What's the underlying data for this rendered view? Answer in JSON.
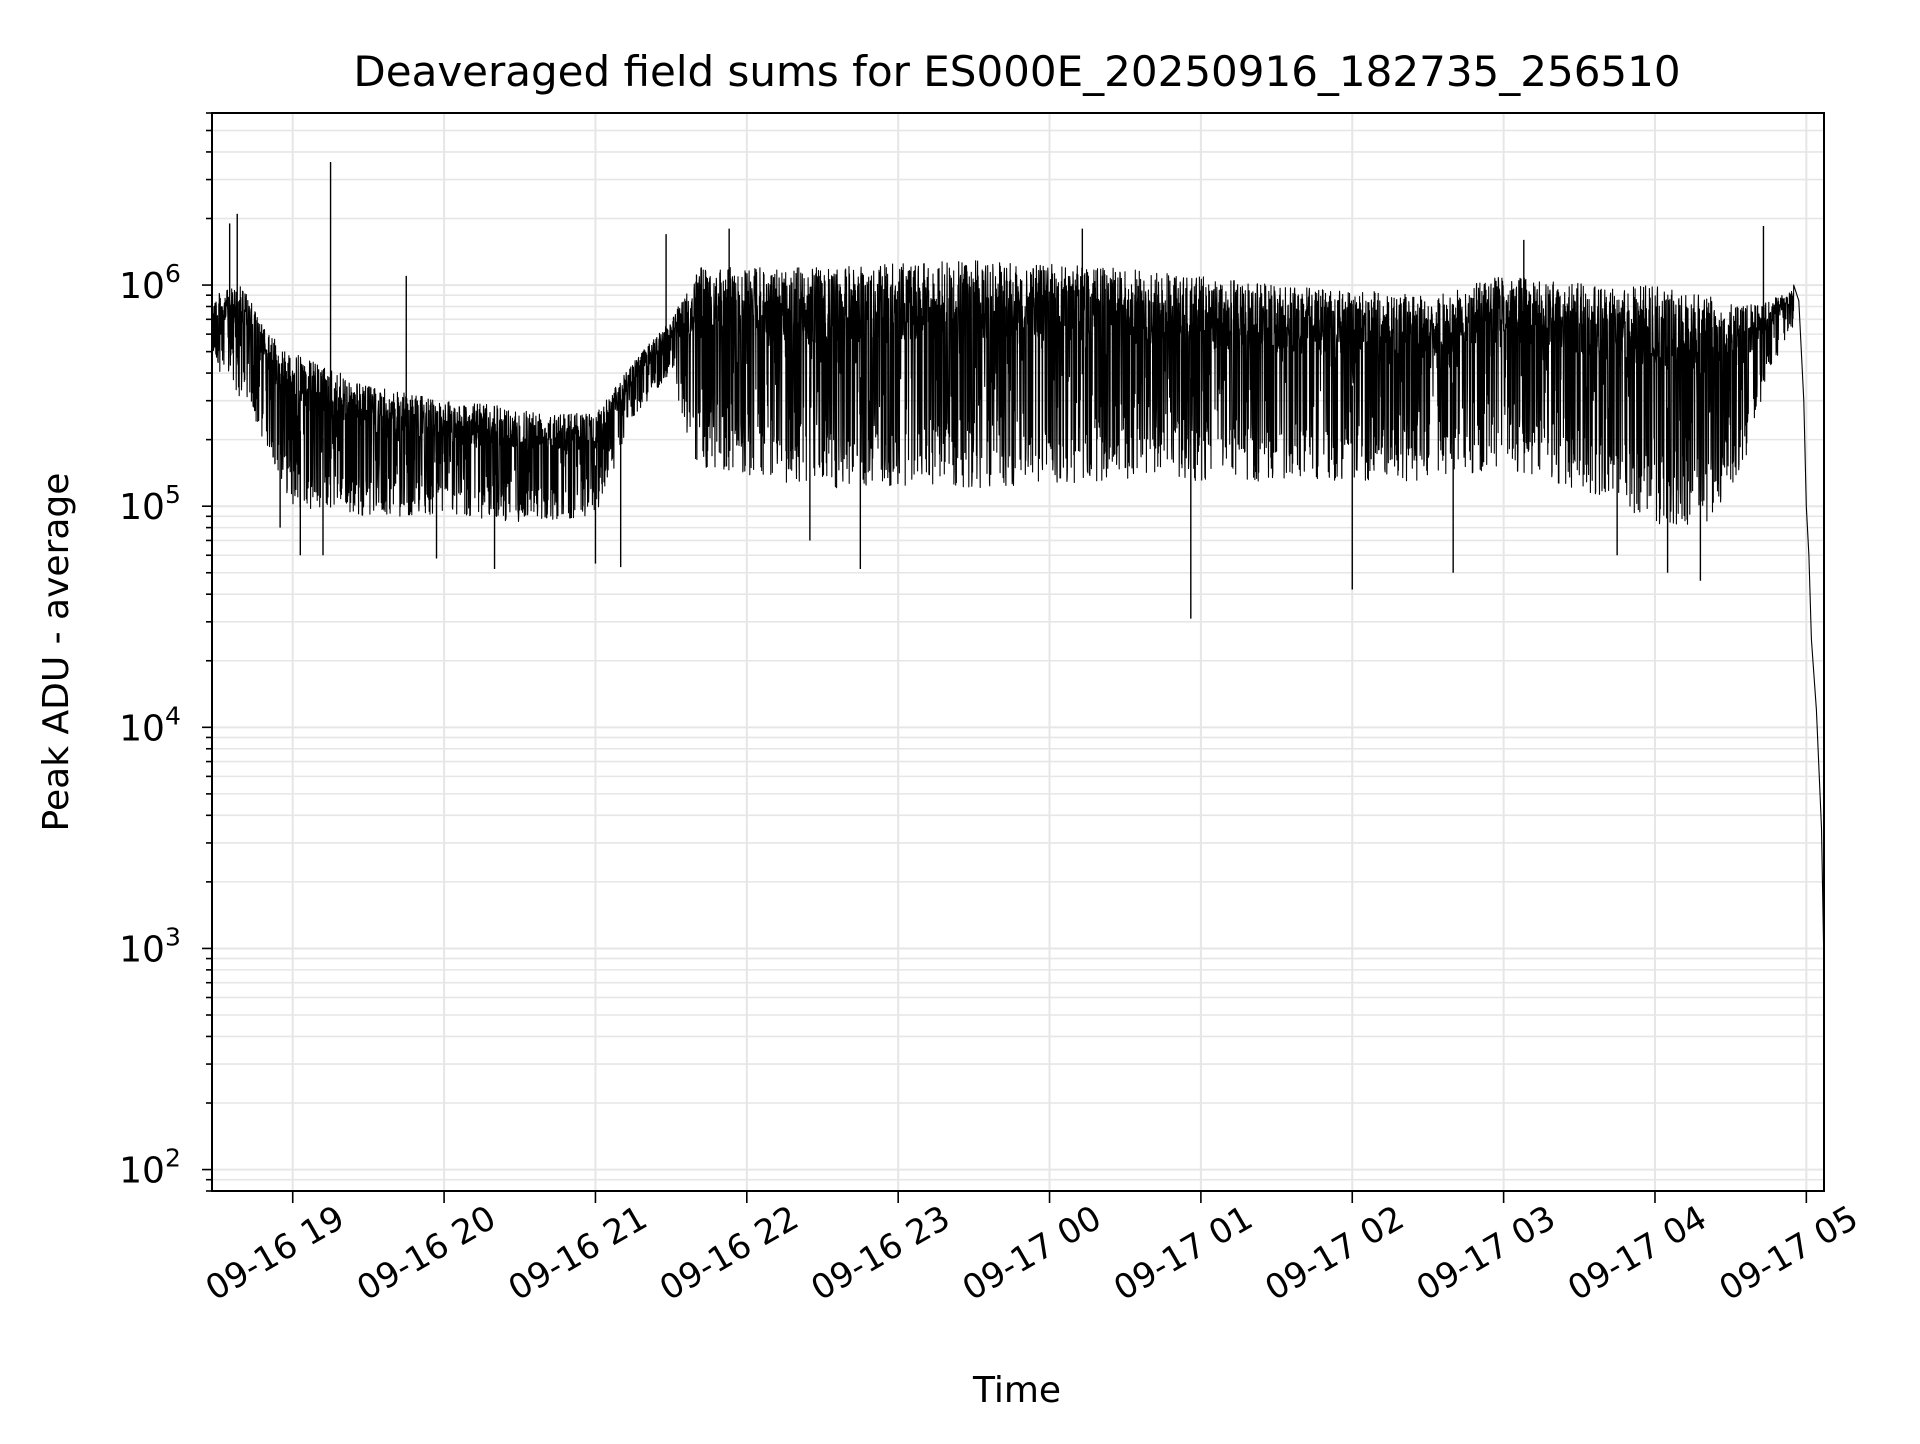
{
  "chart_data": {
    "type": "line",
    "title": "Deaveraged field sums for ES000E_20250916_182735_256510",
    "xlabel": "Time",
    "ylabel": "Peak ADU - average",
    "yscale": "log",
    "ylim": [
      80,
      6000000
    ],
    "xlim": [
      "2025-09-16 18:28",
      "2025-09-17 05:07"
    ],
    "grid": true,
    "grid_minor": true,
    "colors": {
      "line": "#000000",
      "grid": "#e6e6e6",
      "axes": "#000000"
    },
    "x_ticks": [
      {
        "t": "2025-09-16 19:00",
        "label": "09-16 19"
      },
      {
        "t": "2025-09-16 20:00",
        "label": "09-16 20"
      },
      {
        "t": "2025-09-16 21:00",
        "label": "09-16 21"
      },
      {
        "t": "2025-09-16 22:00",
        "label": "09-16 22"
      },
      {
        "t": "2025-09-16 23:00",
        "label": "09-16 23"
      },
      {
        "t": "2025-09-17 00:00",
        "label": "09-17 00"
      },
      {
        "t": "2025-09-17 01:00",
        "label": "09-17 01"
      },
      {
        "t": "2025-09-17 02:00",
        "label": "09-17 02"
      },
      {
        "t": "2025-09-17 03:00",
        "label": "09-17 03"
      },
      {
        "t": "2025-09-17 04:00",
        "label": "09-17 04"
      },
      {
        "t": "2025-09-17 05:00",
        "label": "09-17 05"
      }
    ],
    "y_ticks": [
      {
        "value": 100,
        "base": "10",
        "exp": "2"
      },
      {
        "value": 1000,
        "base": "10",
        "exp": "3"
      },
      {
        "value": 10000,
        "base": "10",
        "exp": "4"
      },
      {
        "value": 100000,
        "base": "10",
        "exp": "5"
      },
      {
        "value": 1000000,
        "base": "10",
        "exp": "6"
      }
    ],
    "envelope": [
      {
        "t": "2025-09-16 18:28",
        "lo": 450000,
        "hi": 900000
      },
      {
        "t": "2025-09-16 18:40",
        "lo": 300000,
        "hi": 1000000
      },
      {
        "t": "2025-09-16 18:50",
        "lo": 180000,
        "hi": 600000
      },
      {
        "t": "2025-09-16 19:00",
        "lo": 100000,
        "hi": 500000
      },
      {
        "t": "2025-09-16 19:30",
        "lo": 90000,
        "hi": 350000
      },
      {
        "t": "2025-09-16 20:00",
        "lo": 90000,
        "hi": 300000
      },
      {
        "t": "2025-09-16 20:30",
        "lo": 85000,
        "hi": 280000
      },
      {
        "t": "2025-09-16 21:00",
        "lo": 90000,
        "hi": 260000
      },
      {
        "t": "2025-09-16 21:15",
        "lo": 250000,
        "hi": 450000
      },
      {
        "t": "2025-09-16 21:30",
        "lo": 400000,
        "hi": 700000
      },
      {
        "t": "2025-09-16 21:40",
        "lo": 150000,
        "hi": 1200000
      },
      {
        "t": "2025-09-16 22:30",
        "lo": 120000,
        "hi": 1200000
      },
      {
        "t": "2025-09-16 23:30",
        "lo": 120000,
        "hi": 1300000
      },
      {
        "t": "2025-09-17 00:30",
        "lo": 130000,
        "hi": 1200000
      },
      {
        "t": "2025-09-17 01:30",
        "lo": 130000,
        "hi": 1000000
      },
      {
        "t": "2025-09-17 02:30",
        "lo": 130000,
        "hi": 900000
      },
      {
        "t": "2025-09-17 03:00",
        "lo": 150000,
        "hi": 1100000
      },
      {
        "t": "2025-09-17 03:40",
        "lo": 110000,
        "hi": 1000000
      },
      {
        "t": "2025-09-17 04:00",
        "lo": 80000,
        "hi": 1000000
      },
      {
        "t": "2025-09-17 04:20",
        "lo": 80000,
        "hi": 900000
      },
      {
        "t": "2025-09-17 04:35",
        "lo": 150000,
        "hi": 800000
      },
      {
        "t": "2025-09-17 04:45",
        "lo": 400000,
        "hi": 850000
      },
      {
        "t": "2025-09-17 04:55",
        "lo": 650000,
        "hi": 950000
      }
    ],
    "spikes": [
      {
        "t": "2025-09-16 18:35",
        "value": 1900000
      },
      {
        "t": "2025-09-16 18:38",
        "value": 2100000
      },
      {
        "t": "2025-09-16 19:15",
        "value": 3600000
      },
      {
        "t": "2025-09-16 19:45",
        "value": 1100000
      },
      {
        "t": "2025-09-16 21:28",
        "value": 1700000
      },
      {
        "t": "2025-09-16 21:53",
        "value": 1800000
      },
      {
        "t": "2025-09-17 00:13",
        "value": 1800000
      },
      {
        "t": "2025-09-17 03:08",
        "value": 1600000
      },
      {
        "t": "2025-09-17 04:43",
        "value": 1850000
      },
      {
        "t": "2025-09-16 18:55",
        "value": 80000
      },
      {
        "t": "2025-09-16 19:03",
        "value": 60000
      },
      {
        "t": "2025-09-16 19:12",
        "value": 60000
      },
      {
        "t": "2025-09-16 19:57",
        "value": 58000
      },
      {
        "t": "2025-09-16 20:20",
        "value": 52000
      },
      {
        "t": "2025-09-16 21:00",
        "value": 55000
      },
      {
        "t": "2025-09-16 21:10",
        "value": 53000
      },
      {
        "t": "2025-09-16 22:25",
        "value": 70000
      },
      {
        "t": "2025-09-16 22:45",
        "value": 52000
      },
      {
        "t": "2025-09-17 00:56",
        "value": 31000
      },
      {
        "t": "2025-09-17 02:00",
        "value": 42000
      },
      {
        "t": "2025-09-17 02:40",
        "value": 50000
      },
      {
        "t": "2025-09-17 03:45",
        "value": 60000
      },
      {
        "t": "2025-09-17 04:05",
        "value": 50000
      },
      {
        "t": "2025-09-17 04:18",
        "value": 46000
      }
    ],
    "tail": [
      {
        "t": "2025-09-17 04:55",
        "value": 1000000
      },
      {
        "t": "2025-09-17 04:57",
        "value": 850000
      },
      {
        "t": "2025-09-17 04:59",
        "value": 300000
      },
      {
        "t": "2025-09-17 05:00",
        "value": 100000
      },
      {
        "t": "2025-09-17 05:01",
        "value": 60000
      },
      {
        "t": "2025-09-17 05:02",
        "value": 25000
      },
      {
        "t": "2025-09-17 05:04",
        "value": 12000
      },
      {
        "t": "2025-09-17 05:06",
        "value": 3500
      },
      {
        "t": "2025-09-17 05:07",
        "value": 800
      }
    ]
  }
}
